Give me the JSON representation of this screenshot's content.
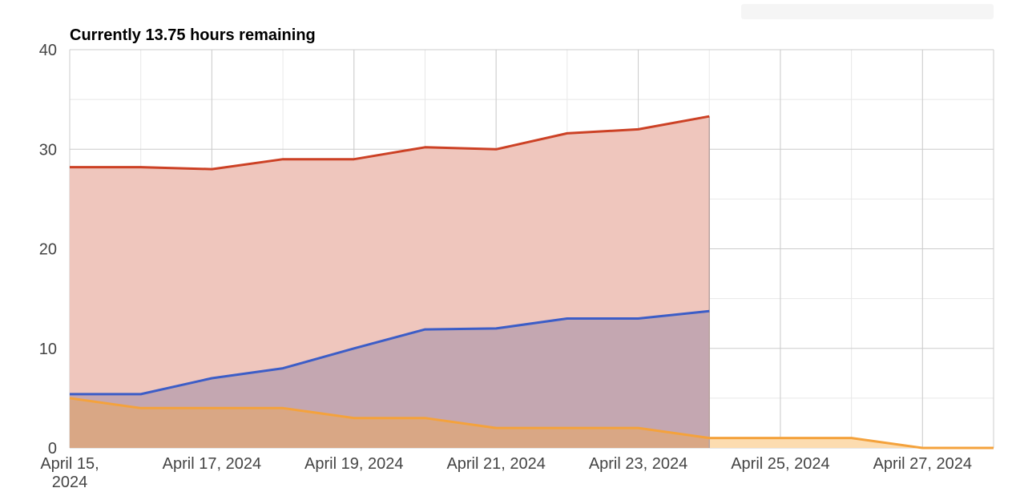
{
  "title": "Currently 13.75 hours remaining",
  "colors": {
    "total": "#cc4125",
    "remaining": "#3c5dc7",
    "projected": "#f4a23c",
    "total_fill": "#efc6bd",
    "remaining_fill": "#c4a7b1",
    "projected_fill": "#d9a785",
    "future_fill": "#fcdcb0",
    "grid_major": "#cccccc",
    "grid_minor": "#e8e8e8"
  },
  "chart_data": {
    "type": "area",
    "x_axis_type": "date",
    "x_ticks": [
      "2024-04-15",
      "2024-04-17",
      "2024-04-19",
      "2024-04-21",
      "2024-04-23",
      "2024-04-25",
      "2024-04-27"
    ],
    "x_tick_labels": [
      [
        "April 15,",
        "2024"
      ],
      [
        "April 17, 2024"
      ],
      [
        "April 19, 2024"
      ],
      [
        "April 21, 2024"
      ],
      [
        "April 23, 2024"
      ],
      [
        "April 25, 2024"
      ],
      [
        "April 27, 2024"
      ]
    ],
    "xlim": [
      "2024-04-15",
      "2024-04-28"
    ],
    "ylim": [
      0,
      40
    ],
    "y_ticks": [
      0,
      10,
      20,
      30,
      40
    ],
    "grid": true,
    "series": [
      {
        "color": "#cc4125",
        "x": [
          "2024-04-15",
          "2024-04-16",
          "2024-04-17",
          "2024-04-18",
          "2024-04-19",
          "2024-04-20",
          "2024-04-21",
          "2024-04-22",
          "2024-04-23",
          "2024-04-24"
        ],
        "values": [
          28.2,
          28.2,
          28.0,
          29.0,
          29.0,
          30.2,
          30.0,
          31.6,
          32.0,
          33.3
        ]
      },
      {
        "color": "#3c5dc7",
        "x": [
          "2024-04-15",
          "2024-04-16",
          "2024-04-17",
          "2024-04-18",
          "2024-04-19",
          "2024-04-20",
          "2024-04-21",
          "2024-04-22",
          "2024-04-23",
          "2024-04-24"
        ],
        "values": [
          5.4,
          5.4,
          7.0,
          8.0,
          10.0,
          11.9,
          12.0,
          13.0,
          13.0,
          13.75
        ]
      },
      {
        "color": "#f4a23c",
        "x": [
          "2024-04-15",
          "2024-04-16",
          "2024-04-17",
          "2024-04-18",
          "2024-04-19",
          "2024-04-20",
          "2024-04-21",
          "2024-04-22",
          "2024-04-23",
          "2024-04-24",
          "2024-04-25",
          "2024-04-26",
          "2024-04-27",
          "2024-04-28"
        ],
        "values": [
          5,
          4,
          4,
          4,
          3,
          3,
          2,
          2,
          2,
          1,
          1,
          1,
          0,
          0
        ]
      }
    ]
  }
}
